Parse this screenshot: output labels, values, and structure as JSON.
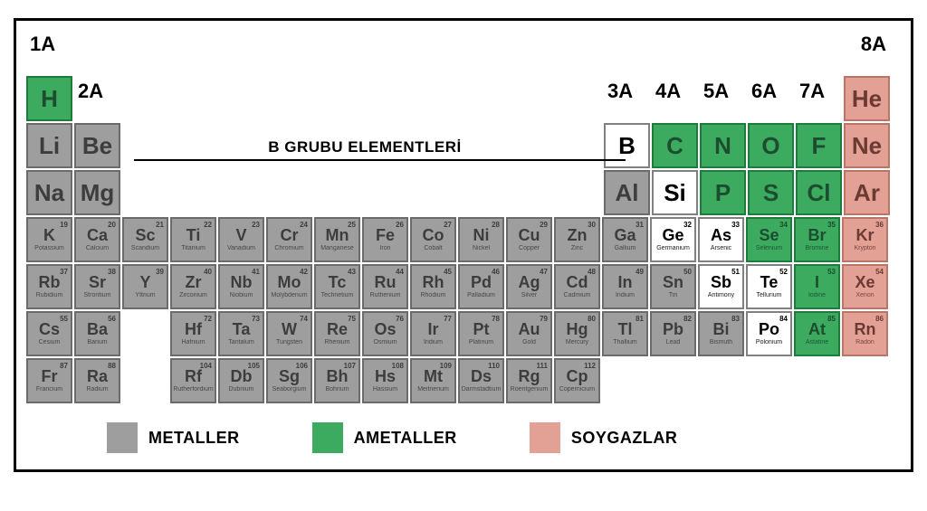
{
  "colors": {
    "metal": "#9e9e9e",
    "metal_border": "#6b6b6b",
    "metal_text": "#3d3d3d",
    "nonmetal": "#3caa5f",
    "nonmetal_border": "#1f7a3e",
    "nonmetal_text": "#1b4d2e",
    "noble": "#e3a196",
    "noble_border": "#b8756a",
    "noble_text": "#6b3a33",
    "white": "#ffffff",
    "white_border": "#808080",
    "white_text": "#000000"
  },
  "groups": {
    "g1": "1A",
    "g2": "2A",
    "g13": "3A",
    "g14": "4A",
    "g15": "5A",
    "g16": "6A",
    "g17": "7A",
    "g18": "8A"
  },
  "midlabel": "B GRUBU ELEMENTLERİ",
  "legend": {
    "metal": "METALLER",
    "nonmetal": "AMETALLER",
    "noble": "SOYGAZLAR"
  },
  "big": {
    "H": "H",
    "He": "He",
    "Li": "Li",
    "Be": "Be",
    "B": "B",
    "C": "C",
    "N": "N",
    "O": "O",
    "F": "F",
    "Ne": "Ne",
    "Na": "Na",
    "Mg": "Mg",
    "Al": "Al",
    "Si": "Si",
    "P": "P",
    "S": "S",
    "Cl": "Cl",
    "Ar": "Ar"
  },
  "small": [
    {
      "n": 19,
      "s": "K",
      "m": "Potassium",
      "c": "metal"
    },
    {
      "n": 20,
      "s": "Ca",
      "m": "Calcium",
      "c": "metal"
    },
    {
      "n": 21,
      "s": "Sc",
      "m": "Scandium",
      "c": "metal"
    },
    {
      "n": 22,
      "s": "Ti",
      "m": "Titanium",
      "c": "metal"
    },
    {
      "n": 23,
      "s": "V",
      "m": "Vanadium",
      "c": "metal"
    },
    {
      "n": 24,
      "s": "Cr",
      "m": "Chromium",
      "c": "metal"
    },
    {
      "n": 25,
      "s": "Mn",
      "m": "Manganese",
      "c": "metal"
    },
    {
      "n": 26,
      "s": "Fe",
      "m": "Iron",
      "c": "metal"
    },
    {
      "n": 27,
      "s": "Co",
      "m": "Cobalt",
      "c": "metal"
    },
    {
      "n": 28,
      "s": "Ni",
      "m": "Nickel",
      "c": "metal"
    },
    {
      "n": 29,
      "s": "Cu",
      "m": "Copper",
      "c": "metal"
    },
    {
      "n": 30,
      "s": "Zn",
      "m": "Zinc",
      "c": "metal"
    },
    {
      "n": 31,
      "s": "Ga",
      "m": "Gallium",
      "c": "metal"
    },
    {
      "n": 32,
      "s": "Ge",
      "m": "Germanium",
      "c": "white"
    },
    {
      "n": 33,
      "s": "As",
      "m": "Arsenic",
      "c": "white"
    },
    {
      "n": 34,
      "s": "Se",
      "m": "Selenium",
      "c": "nonmetal"
    },
    {
      "n": 35,
      "s": "Br",
      "m": "Bromine",
      "c": "nonmetal"
    },
    {
      "n": 36,
      "s": "Kr",
      "m": "Krypton",
      "c": "noble"
    },
    {
      "n": 37,
      "s": "Rb",
      "m": "Rubidium",
      "c": "metal"
    },
    {
      "n": 38,
      "s": "Sr",
      "m": "Strontium",
      "c": "metal"
    },
    {
      "n": 39,
      "s": "Y",
      "m": "Yttrium",
      "c": "metal"
    },
    {
      "n": 40,
      "s": "Zr",
      "m": "Zirconium",
      "c": "metal"
    },
    {
      "n": 41,
      "s": "Nb",
      "m": "Niobium",
      "c": "metal"
    },
    {
      "n": 42,
      "s": "Mo",
      "m": "Molybdenum",
      "c": "metal"
    },
    {
      "n": 43,
      "s": "Tc",
      "m": "Technetium",
      "c": "metal"
    },
    {
      "n": 44,
      "s": "Ru",
      "m": "Ruthenium",
      "c": "metal"
    },
    {
      "n": 45,
      "s": "Rh",
      "m": "Rhodium",
      "c": "metal"
    },
    {
      "n": 46,
      "s": "Pd",
      "m": "Palladium",
      "c": "metal"
    },
    {
      "n": 47,
      "s": "Ag",
      "m": "Silver",
      "c": "metal"
    },
    {
      "n": 48,
      "s": "Cd",
      "m": "Cadmium",
      "c": "metal"
    },
    {
      "n": 49,
      "s": "In",
      "m": "Indium",
      "c": "metal"
    },
    {
      "n": 50,
      "s": "Sn",
      "m": "Tin",
      "c": "metal"
    },
    {
      "n": 51,
      "s": "Sb",
      "m": "Antimony",
      "c": "white"
    },
    {
      "n": 52,
      "s": "Te",
      "m": "Tellurium",
      "c": "white"
    },
    {
      "n": 53,
      "s": "I",
      "m": "Iodine",
      "c": "nonmetal"
    },
    {
      "n": 54,
      "s": "Xe",
      "m": "Xenon",
      "c": "noble"
    },
    {
      "n": 55,
      "s": "Cs",
      "m": "Cesium",
      "c": "metal"
    },
    {
      "n": 56,
      "s": "Ba",
      "m": "Barium",
      "c": "metal"
    },
    {
      "n": 0,
      "s": "",
      "m": "",
      "c": "gap"
    },
    {
      "n": 72,
      "s": "Hf",
      "m": "Hafnium",
      "c": "metal"
    },
    {
      "n": 73,
      "s": "Ta",
      "m": "Tantalum",
      "c": "metal"
    },
    {
      "n": 74,
      "s": "W",
      "m": "Tungsten",
      "c": "metal"
    },
    {
      "n": 75,
      "s": "Re",
      "m": "Rhenium",
      "c": "metal"
    },
    {
      "n": 76,
      "s": "Os",
      "m": "Osmium",
      "c": "metal"
    },
    {
      "n": 77,
      "s": "Ir",
      "m": "Iridium",
      "c": "metal"
    },
    {
      "n": 78,
      "s": "Pt",
      "m": "Platinum",
      "c": "metal"
    },
    {
      "n": 79,
      "s": "Au",
      "m": "Gold",
      "c": "metal"
    },
    {
      "n": 80,
      "s": "Hg",
      "m": "Mercury",
      "c": "metal"
    },
    {
      "n": 81,
      "s": "Tl",
      "m": "Thallium",
      "c": "metal"
    },
    {
      "n": 82,
      "s": "Pb",
      "m": "Lead",
      "c": "metal"
    },
    {
      "n": 83,
      "s": "Bi",
      "m": "Bismuth",
      "c": "metal"
    },
    {
      "n": 84,
      "s": "Po",
      "m": "Polonium",
      "c": "white"
    },
    {
      "n": 85,
      "s": "At",
      "m": "Astatine",
      "c": "nonmetal"
    },
    {
      "n": 86,
      "s": "Rn",
      "m": "Radon",
      "c": "noble"
    },
    {
      "n": 87,
      "s": "Fr",
      "m": "Francium",
      "c": "metal"
    },
    {
      "n": 88,
      "s": "Ra",
      "m": "Radium",
      "c": "metal"
    },
    {
      "n": 0,
      "s": "",
      "m": "",
      "c": "gap"
    },
    {
      "n": 104,
      "s": "Rf",
      "m": "Rutherfordium",
      "c": "metal"
    },
    {
      "n": 105,
      "s": "Db",
      "m": "Dubnium",
      "c": "metal"
    },
    {
      "n": 106,
      "s": "Sg",
      "m": "Seaborgium",
      "c": "metal"
    },
    {
      "n": 107,
      "s": "Bh",
      "m": "Bohrium",
      "c": "metal"
    },
    {
      "n": 108,
      "s": "Hs",
      "m": "Hassium",
      "c": "metal"
    },
    {
      "n": 109,
      "s": "Mt",
      "m": "Meitnerium",
      "c": "metal"
    },
    {
      "n": 110,
      "s": "Ds",
      "m": "Darmstadtium",
      "c": "metal"
    },
    {
      "n": 111,
      "s": "Rg",
      "m": "Roentgenium",
      "c": "metal"
    },
    {
      "n": 112,
      "s": "Cp",
      "m": "Copernicium",
      "c": "metal"
    }
  ]
}
